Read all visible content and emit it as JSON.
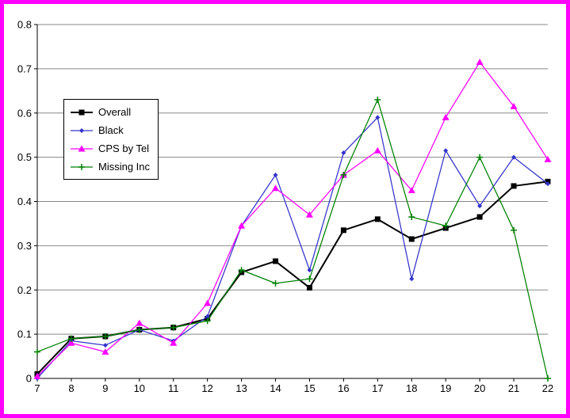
{
  "frame": {
    "border_color": "#FF00FF",
    "background": "#FFFFFF",
    "gridline_color": "#888888",
    "axis_color": "#000000"
  },
  "chart_data": {
    "type": "line",
    "title": "",
    "xlabel": "",
    "ylabel": "",
    "x": [
      "7",
      "8",
      "9",
      "10",
      "11",
      "12",
      "13",
      "14",
      "15",
      "16",
      "17",
      "18",
      "19",
      "20",
      "21",
      "22"
    ],
    "ylim": [
      0,
      0.8
    ],
    "yticks": [
      0,
      0.1,
      0.2,
      0.3,
      0.4,
      0.5,
      0.6,
      0.7,
      0.8
    ],
    "ytick_labels": [
      "0",
      "0.1",
      "0.2",
      "0.3",
      "0.4",
      "0.5",
      "0.6",
      "0.7",
      "0.8"
    ],
    "grid": "horizontal",
    "legend_position": "upper-left-inside",
    "series": [
      {
        "name": "Overall",
        "color": "#000000",
        "marker": "square",
        "line_width": 2,
        "values": [
          0.01,
          0.09,
          0.095,
          0.11,
          0.115,
          0.135,
          0.24,
          0.265,
          0.205,
          0.335,
          0.36,
          0.315,
          0.34,
          0.365,
          0.435,
          0.445
        ]
      },
      {
        "name": "Black",
        "color": "#3333CC",
        "marker": "diamond",
        "line_width": 1.25,
        "values": [
          0.0,
          0.085,
          0.075,
          0.11,
          0.085,
          0.14,
          0.345,
          0.46,
          0.245,
          0.51,
          0.59,
          0.225,
          0.515,
          0.39,
          0.5,
          0.44
        ]
      },
      {
        "name": "CPS by Tel",
        "color": "#FF00FF",
        "marker": "triangle",
        "line_width": 1.25,
        "values": [
          0.005,
          0.08,
          0.06,
          0.125,
          0.08,
          0.17,
          0.345,
          0.43,
          0.37,
          0.46,
          0.515,
          0.425,
          0.59,
          0.715,
          0.615,
          0.495
        ]
      },
      {
        "name": "Missing Inc",
        "color": "#008000",
        "marker": "plus",
        "line_width": 1.25,
        "values": [
          0.06,
          0.09,
          0.095,
          0.11,
          0.115,
          0.13,
          0.245,
          0.215,
          0.225,
          0.46,
          0.63,
          0.365,
          0.345,
          0.5,
          0.335,
          0.0
        ]
      }
    ]
  }
}
